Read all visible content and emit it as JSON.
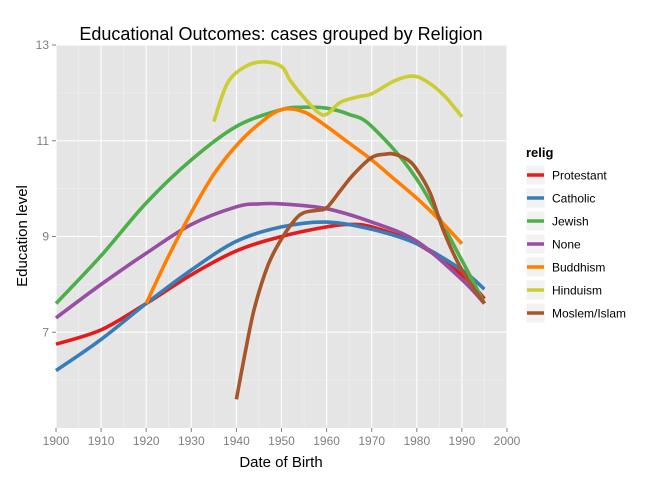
{
  "chart_data": {
    "type": "line",
    "title": "Educational Outcomes: cases grouped by Religion",
    "xlabel": "Date of Birth",
    "ylabel": "Education level",
    "xlim": [
      1900,
      2000
    ],
    "ylim": [
      5.0,
      13.0
    ],
    "x_ticks": [
      1900,
      1910,
      1920,
      1930,
      1940,
      1950,
      1960,
      1970,
      1980,
      1990,
      2000
    ],
    "y_ticks": [
      7,
      9,
      11,
      13
    ],
    "grid": true,
    "legend": {
      "title": "relig",
      "placement": "right"
    },
    "series": [
      {
        "name": "Protestant",
        "color": "#e41a1c",
        "x": [
          1900,
          1910,
          1920,
          1930,
          1940,
          1950,
          1960,
          1965,
          1970,
          1980,
          1990,
          1995
        ],
        "y": [
          6.75,
          7.05,
          7.6,
          8.2,
          8.7,
          9.0,
          9.2,
          9.25,
          9.2,
          8.85,
          8.2,
          7.7
        ]
      },
      {
        "name": "Catholic",
        "color": "#377eb8",
        "x": [
          1900,
          1910,
          1920,
          1930,
          1940,
          1950,
          1960,
          1970,
          1980,
          1990,
          1995
        ],
        "y": [
          6.2,
          6.85,
          7.6,
          8.3,
          8.9,
          9.2,
          9.3,
          9.15,
          8.85,
          8.3,
          7.9
        ]
      },
      {
        "name": "Jewish",
        "color": "#4daf4a",
        "x": [
          1900,
          1910,
          1920,
          1930,
          1940,
          1950,
          1955,
          1960,
          1965,
          1970,
          1980,
          1990,
          1995
        ],
        "y": [
          7.6,
          8.6,
          9.7,
          10.6,
          11.3,
          11.65,
          11.7,
          11.68,
          11.55,
          11.3,
          10.2,
          8.5,
          7.6
        ]
      },
      {
        "name": "None",
        "color": "#984ea3",
        "x": [
          1900,
          1910,
          1920,
          1930,
          1940,
          1945,
          1950,
          1960,
          1970,
          1980,
          1990,
          1995
        ],
        "y": [
          7.3,
          8.0,
          8.65,
          9.25,
          9.62,
          9.68,
          9.68,
          9.58,
          9.3,
          8.9,
          8.1,
          7.6
        ]
      },
      {
        "name": "Buddhism",
        "color": "#ff7f00",
        "x": [
          1920,
          1925,
          1930,
          1935,
          1940,
          1945,
          1950,
          1955,
          1960,
          1965,
          1970,
          1975,
          1980,
          1985,
          1990
        ],
        "y": [
          7.6,
          8.6,
          9.5,
          10.3,
          10.9,
          11.35,
          11.65,
          11.6,
          11.3,
          10.95,
          10.6,
          10.2,
          9.8,
          9.35,
          8.85
        ]
      },
      {
        "name": "Hinduism",
        "color": "#cccc33",
        "x": [
          1935,
          1938,
          1942,
          1946,
          1950,
          1952,
          1955,
          1958,
          1960,
          1963,
          1967,
          1970,
          1975,
          1979,
          1982,
          1986,
          1990
        ],
        "y": [
          11.4,
          12.2,
          12.55,
          12.65,
          12.55,
          12.25,
          11.9,
          11.6,
          11.55,
          11.8,
          11.92,
          11.98,
          12.25,
          12.35,
          12.25,
          11.95,
          11.5
        ]
      },
      {
        "name": "Moslem/Islam",
        "color": "#a65628",
        "x": [
          1940,
          1942,
          1944,
          1947,
          1950,
          1953,
          1955,
          1958,
          1960,
          1963,
          1966,
          1970,
          1973,
          1975,
          1978,
          1980,
          1983,
          1986,
          1990,
          1995
        ],
        "y": [
          5.6,
          6.6,
          7.5,
          8.4,
          8.95,
          9.35,
          9.5,
          9.55,
          9.6,
          9.95,
          10.3,
          10.65,
          10.72,
          10.72,
          10.6,
          10.4,
          9.9,
          9.1,
          8.3,
          7.6
        ]
      }
    ]
  }
}
